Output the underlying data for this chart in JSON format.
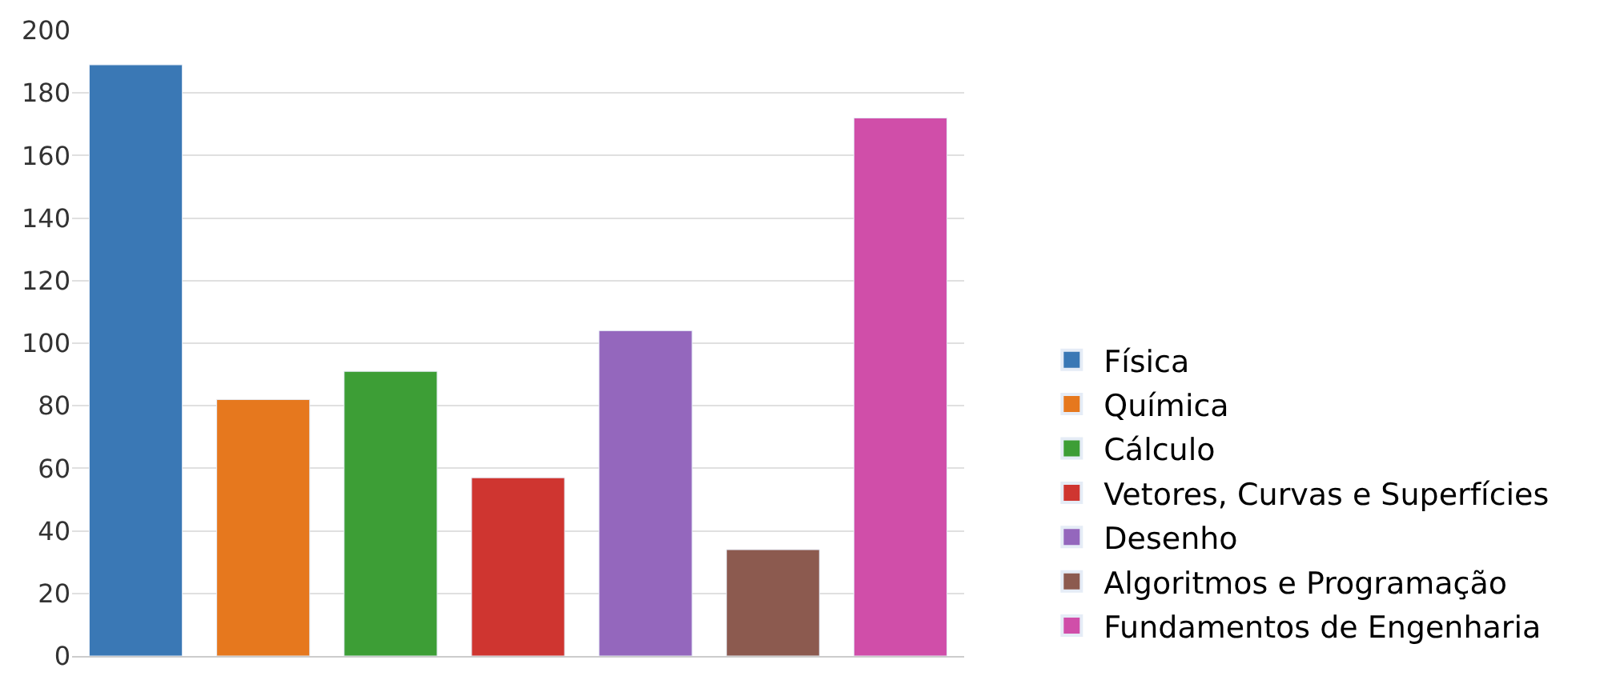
{
  "chart_data": {
    "type": "bar",
    "categories": [
      null,
      null,
      null,
      null,
      null,
      null,
      null
    ],
    "series": [
      {
        "name": "Física",
        "color": "#3a78b5",
        "values": [
          189,
          null,
          null,
          null,
          null,
          null,
          null
        ]
      },
      {
        "name": "Química",
        "color": "#e6781e",
        "values": [
          null,
          82,
          null,
          null,
          null,
          null,
          null
        ]
      },
      {
        "name": "Cálculo",
        "color": "#3d9e36",
        "values": [
          null,
          null,
          91,
          null,
          null,
          null,
          null
        ]
      },
      {
        "name": "Vetores, Curvas e Superfícies",
        "color": "#cf3530",
        "values": [
          null,
          null,
          null,
          57,
          null,
          null,
          null
        ]
      },
      {
        "name": "Desenho",
        "color": "#9467bd",
        "values": [
          null,
          null,
          null,
          null,
          104,
          null,
          null
        ]
      },
      {
        "name": "Algoritmos e Programação",
        "color": "#8c5a4f",
        "values": [
          null,
          null,
          null,
          null,
          null,
          34,
          null
        ]
      },
      {
        "name": "Fundamentos de Engenharia",
        "color": "#d04ea9",
        "values": [
          null,
          null,
          null,
          null,
          null,
          null,
          172
        ]
      }
    ],
    "ylim": [
      0,
      200
    ],
    "yticks": [
      0,
      20,
      40,
      60,
      80,
      100,
      120,
      140,
      160,
      180,
      200
    ],
    "grid": "y",
    "legend": "right",
    "tick_labels": "y"
  }
}
